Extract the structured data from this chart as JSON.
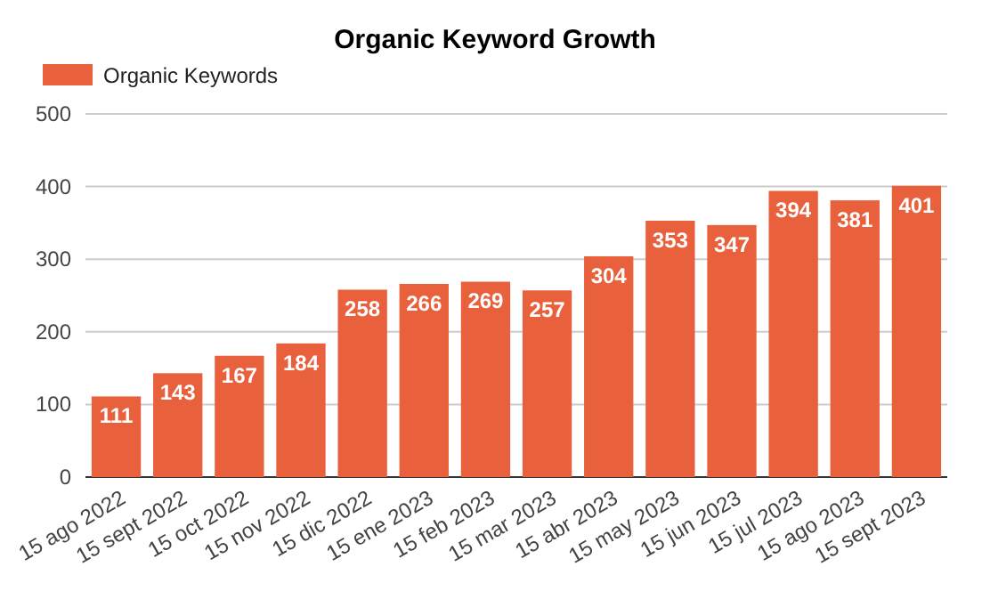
{
  "chart_data": {
    "type": "bar",
    "title": "Organic Keyword Growth",
    "categories": [
      "15 ago 2022",
      "15 sept 2022",
      "15 oct 2022",
      "15 nov 2022",
      "15 dic 2022",
      "15 ene 2023",
      "15 feb 2023",
      "15 mar 2023",
      "15 abr 2023",
      "15 may 2023",
      "15 jun 2023",
      "15 jul 2023",
      "15 ago 2023",
      "15 sept 2023"
    ],
    "series": [
      {
        "name": "Organic Keywords",
        "color": "#e8603c",
        "values": [
          111,
          143,
          167,
          184,
          258,
          266,
          269,
          257,
          304,
          353,
          347,
          394,
          381,
          401
        ]
      }
    ],
    "ylim": [
      0,
      500
    ],
    "yticks": [
      0,
      100,
      200,
      300,
      400,
      500
    ],
    "grid": "y",
    "legend": "top left",
    "data_labels": true
  }
}
